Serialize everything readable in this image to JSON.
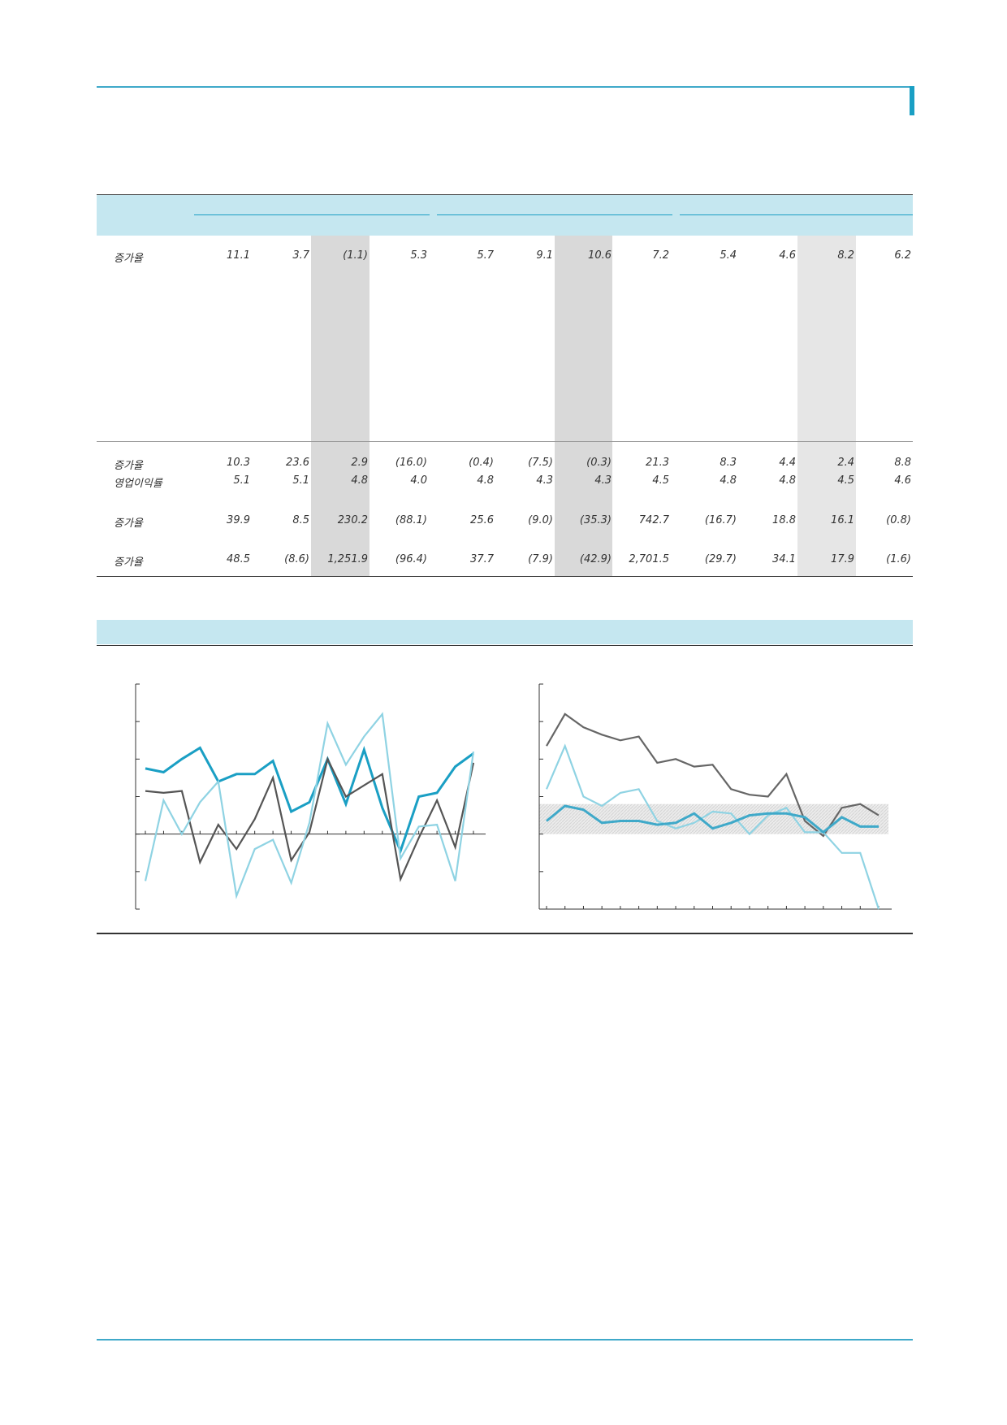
{
  "table": {
    "rows": [
      {
        "label": "증가율",
        "values": [
          "11.1",
          "3.7",
          "(1.1)",
          "5.3",
          "5.7",
          "9.1",
          "10.6",
          "7.2",
          "5.4",
          "4.6",
          "8.2",
          "6.2"
        ]
      },
      {
        "label": "증가율",
        "values": [
          "10.3",
          "23.6",
          "2.9",
          "(16.0)",
          "(0.4)",
          "(7.5)",
          "(0.3)",
          "21.3",
          "8.3",
          "4.4",
          "2.4",
          "8.8"
        ]
      },
      {
        "label": "영업이익률",
        "values": [
          "5.1",
          "5.1",
          "4.8",
          "4.0",
          "4.8",
          "4.3",
          "4.3",
          "4.5",
          "4.8",
          "4.8",
          "4.5",
          "4.6"
        ]
      },
      {
        "label": "증가율",
        "values": [
          "39.9",
          "8.5",
          "230.2",
          "(88.1)",
          "25.6",
          "(9.0)",
          "(35.3)",
          "742.7",
          "(16.7)",
          "18.8",
          "16.1",
          "(0.8)"
        ]
      },
      {
        "label": "증가율",
        "values": [
          "48.5",
          "(8.6)",
          "1,251.9",
          "(96.4)",
          "37.7",
          "(7.9)",
          "(42.9)",
          "2,701.5",
          "(29.7)",
          "34.1",
          "17.9",
          "(1.6)"
        ]
      }
    ]
  },
  "chart_data": [
    {
      "type": "line",
      "ylim": [
        -2,
        4
      ],
      "series": [
        {
          "color": "#1a9fc4",
          "values": [
            1.75,
            1.65,
            2.0,
            2.3,
            1.4,
            1.6,
            1.6,
            1.95,
            0.6,
            0.85,
            2.0,
            0.8,
            2.25,
            0.7,
            -0.45,
            1.0,
            1.1,
            1.8,
            2.15
          ]
        },
        {
          "color": "#555555",
          "values": [
            1.15,
            1.1,
            1.15,
            -0.75,
            0.25,
            -0.4,
            0.4,
            1.5,
            -0.7,
            0.05,
            2.0,
            1.0,
            1.3,
            1.6,
            -1.2,
            -0.1,
            0.9,
            -0.35,
            1.9
          ]
        },
        {
          "color": "#8fd3e3",
          "values": [
            -1.25,
            0.9,
            0.0,
            0.85,
            1.4,
            -1.65,
            -0.4,
            -0.15,
            -1.3,
            0.3,
            2.95,
            1.85,
            2.6,
            3.2,
            -0.65,
            0.2,
            0.25,
            -1.25,
            2.2
          ]
        }
      ]
    },
    {
      "type": "line",
      "ylim": [
        -2,
        4
      ],
      "band": [
        0,
        0.8
      ],
      "series": [
        {
          "color": "#666666",
          "values": [
            2.35,
            3.2,
            2.85,
            2.65,
            2.5,
            2.6,
            1.9,
            2.0,
            1.8,
            1.85,
            1.2,
            1.05,
            1.0,
            1.6,
            0.35,
            -0.05,
            0.7,
            0.8,
            0.5
          ]
        },
        {
          "color": "#8fd3e3",
          "values": [
            1.2,
            2.35,
            1.0,
            0.75,
            1.1,
            1.2,
            0.35,
            0.15,
            0.3,
            0.6,
            0.55,
            0.0,
            0.5,
            0.7,
            0.05,
            0.05,
            -0.5,
            -0.5,
            -2.0
          ]
        },
        {
          "color": "#3fa9c9",
          "values": [
            0.35,
            0.75,
            0.65,
            0.3,
            0.35,
            0.35,
            0.25,
            0.3,
            0.55,
            0.15,
            0.3,
            0.5,
            0.55,
            0.55,
            0.45,
            0.05,
            0.45,
            0.2,
            0.2
          ]
        }
      ]
    }
  ]
}
